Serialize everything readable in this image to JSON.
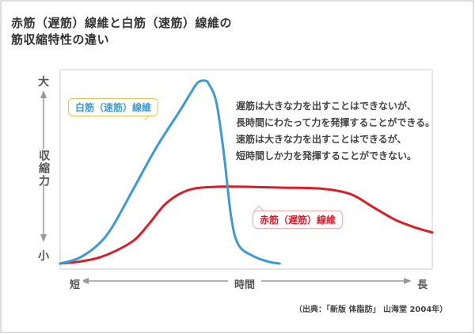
{
  "title_lines": [
    "赤筋（遅筋）線維と白筋（速筋）線維の",
    "筋収縮特性の違い"
  ],
  "description_lines": [
    "遅筋は大きな力を出すことはできないが、",
    "長時間にわたって力を発揮することができる。",
    "速筋は大きな力を出すことはできるが、",
    "短時間しか力を発揮することができない。"
  ],
  "source": "（出典：「新版 体脂肪」 山海堂 2004年）",
  "colors": {
    "white_fiber": "#3a9ad9",
    "red_fiber": "#d81e28",
    "axis": "#999999",
    "frame": "#bbbbbb"
  },
  "chart_data": {
    "type": "line",
    "title": "",
    "xlabel": "時間",
    "ylabel": "収縮力",
    "x_tick_labels": {
      "start": "短",
      "end": "長"
    },
    "y_tick_labels": {
      "top": "大",
      "bottom": "小"
    },
    "xlim": [
      0,
      100
    ],
    "ylim": [
      0,
      100
    ],
    "grid": false,
    "series": [
      {
        "name": "白筋（速筋）線維",
        "color": "#3a9ad9",
        "x": [
          0,
          5,
          10,
          14,
          20,
          26,
          32,
          35,
          37,
          39,
          40,
          42,
          44,
          46,
          48,
          52,
          56,
          59
        ],
        "y": [
          0,
          3,
          10,
          20,
          42,
          64,
          83,
          93,
          99,
          100,
          98,
          88,
          60,
          25,
          10,
          4,
          1,
          0
        ]
      },
      {
        "name": "赤筋（遅筋）線維",
        "color": "#d81e28",
        "x": [
          0,
          5,
          10,
          15,
          20,
          24,
          28,
          32,
          36,
          42,
          50,
          60,
          70,
          78,
          84,
          90,
          95,
          100
        ],
        "y": [
          0,
          1,
          3,
          7,
          13,
          22,
          32,
          38,
          41,
          42,
          42,
          41.5,
          41,
          38,
          31,
          24,
          20,
          17
        ]
      }
    ]
  }
}
